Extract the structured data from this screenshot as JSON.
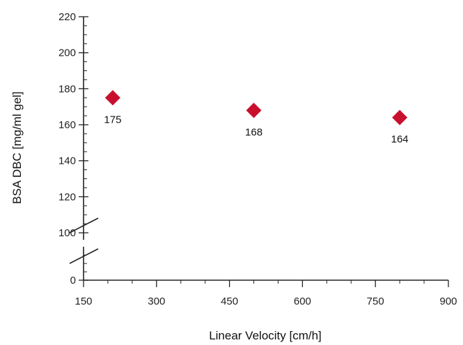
{
  "chart_data": {
    "type": "scatter",
    "title": "",
    "xlabel": "Linear Velocity [cm/h]",
    "ylabel": "BSA DBC [mg/ml gel]",
    "xlim": [
      150,
      900
    ],
    "ylim_lower_segment": [
      0,
      20
    ],
    "ylim_upper_segment": [
      100,
      220
    ],
    "axis_break": "y-axis between 0 and 100",
    "x_ticks": [
      150,
      300,
      450,
      600,
      750,
      900
    ],
    "y_ticks": [
      0,
      100,
      120,
      140,
      160,
      180,
      200,
      220
    ],
    "grid": false,
    "marker": "diamond",
    "marker_color": "#c8102e",
    "series": [
      {
        "x": [
          210,
          500,
          800
        ],
        "y": [
          175,
          168,
          164
        ],
        "labels": [
          "175",
          "168",
          "164"
        ]
      }
    ]
  }
}
